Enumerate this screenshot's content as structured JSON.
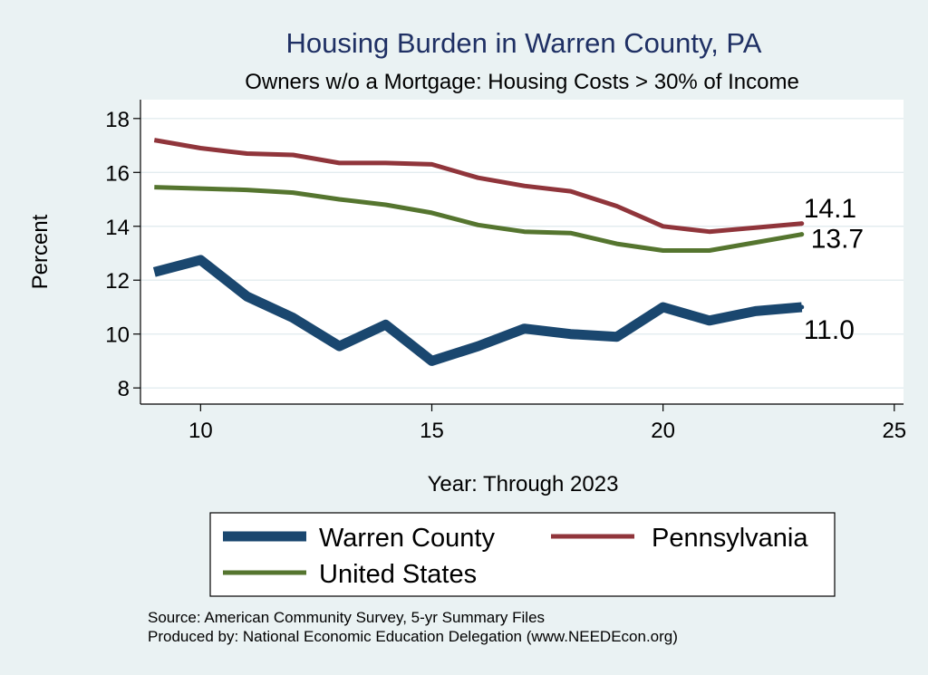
{
  "chart_data": {
    "type": "line",
    "title": "Housing Burden in Warren County, PA",
    "subtitle": "Owners w/o a Mortgage: Housing Costs > 30% of Income",
    "xlabel": "Year: Through 2023",
    "ylabel": "Percent",
    "xlim": [
      8.7,
      25.2
    ],
    "ylim": [
      7.4,
      18.7
    ],
    "xticks": [
      10,
      15,
      20,
      25
    ],
    "yticks": [
      8,
      10,
      12,
      14,
      16,
      18
    ],
    "grid": true,
    "legend_position": "bottom",
    "x": [
      9,
      10,
      11,
      12,
      13,
      14,
      15,
      16,
      17,
      18,
      19,
      20,
      21,
      22,
      23
    ],
    "series": [
      {
        "name": "Warren County",
        "color": "#1a476f",
        "width": "thick",
        "values": [
          12.3,
          12.75,
          11.4,
          10.6,
          9.55,
          10.35,
          9.0,
          9.55,
          10.2,
          10.0,
          9.9,
          11.0,
          10.5,
          10.85,
          11.0
        ],
        "end_label": "11.0"
      },
      {
        "name": "Pennsylvania",
        "color": "#90353b",
        "width": "medium",
        "values": [
          17.2,
          16.9,
          16.7,
          16.65,
          16.35,
          16.35,
          16.3,
          15.8,
          15.5,
          15.3,
          14.75,
          14.0,
          13.8,
          13.95,
          14.1
        ],
        "end_label": "14.1"
      },
      {
        "name": "United States",
        "color": "#55752f",
        "width": "medium",
        "values": [
          15.45,
          15.4,
          15.35,
          15.25,
          15.0,
          14.8,
          14.5,
          14.05,
          13.8,
          13.75,
          13.35,
          13.1,
          13.1,
          13.4,
          13.7
        ],
        "end_label": "13.7"
      }
    ]
  },
  "notes": {
    "source": "Source: American Community Survey, 5-yr Summary Files",
    "produced": "Produced by: National Economic Education Delegation (www.NEEDEcon.org)"
  }
}
